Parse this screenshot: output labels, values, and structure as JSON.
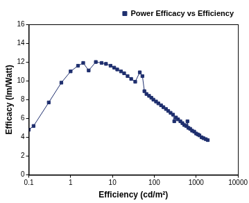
{
  "chart_data": {
    "type": "line",
    "x_label": "Efficiency (cd/m²)",
    "y_label": "Efficacy (lm/Watt)",
    "log": "x",
    "grid": false,
    "legend": "top",
    "xlim": [
      0.1,
      10000
    ],
    "xticks": [
      0.1,
      1,
      10,
      100,
      1000,
      10000
    ],
    "ylim": [
      0,
      16
    ],
    "yticks": [
      0,
      2,
      4,
      6,
      8,
      10,
      12,
      14,
      16
    ],
    "series": [
      {
        "name": "Power Efficacy vs Efficiency",
        "color": "#1f2f6e",
        "marker": "square",
        "line_style": "solid",
        "x": [
          0.1,
          0.13,
          0.3,
          0.6,
          1,
          1.5,
          2,
          2.7,
          4,
          5.5,
          7,
          9,
          11,
          13,
          16,
          19,
          23,
          28,
          35,
          45,
          52,
          58,
          65,
          75,
          85,
          95,
          110,
          125,
          145,
          165,
          190,
          215,
          245,
          280,
          300,
          330,
          370,
          420,
          470,
          520,
          580,
          620,
          650,
          720,
          800,
          900,
          1000,
          1100,
          1200,
          1350,
          1500,
          1700,
          1900
        ],
        "values": [
          4.8,
          5.2,
          7.7,
          9.8,
          11.0,
          11.6,
          11.9,
          11.1,
          12.0,
          11.9,
          11.8,
          11.6,
          11.4,
          11.2,
          11.0,
          10.8,
          10.5,
          10.2,
          9.9,
          10.9,
          10.5,
          8.9,
          8.6,
          8.4,
          8.2,
          8.0,
          7.8,
          7.6,
          7.4,
          7.2,
          7.0,
          6.8,
          6.6,
          6.4,
          5.7,
          6.1,
          5.9,
          5.7,
          5.5,
          5.3,
          5.2,
          5.7,
          5.0,
          4.9,
          4.7,
          4.6,
          4.4,
          4.3,
          4.2,
          4.0,
          3.9,
          3.8,
          3.7
        ]
      }
    ]
  }
}
